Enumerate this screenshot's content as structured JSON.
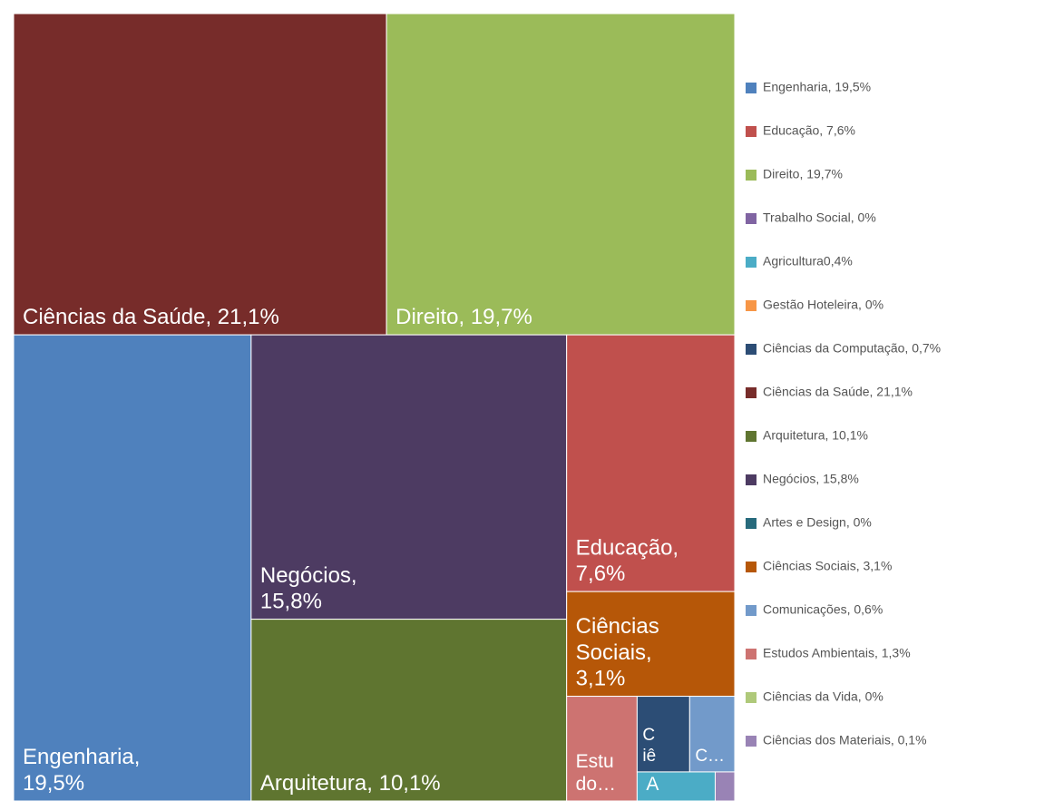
{
  "chart_data": {
    "type": "treemap",
    "categories": [
      "Engenharia",
      "Educação",
      "Direito",
      "Trabalho Social",
      "Agricultura",
      "Gestão Hoteleira",
      "Ciências da Computação",
      "Ciências da Saúde",
      "Arquitetura",
      "Negócios",
      "Artes e Design",
      "Ciências Sociais",
      "Comunicações",
      "Estudos Ambientais",
      "Ciências da Vida",
      "Ciências dos Materiais"
    ],
    "values": [
      19.5,
      7.6,
      19.7,
      0,
      0.4,
      0,
      0.7,
      21.1,
      10.1,
      15.8,
      0,
      3.1,
      0.6,
      1.3,
      0,
      0.1
    ],
    "colors": [
      "#4f81bd",
      "#c0504d",
      "#9bbb59",
      "#8064a2",
      "#4bacc6",
      "#f79646",
      "#2c4d75",
      "#772c2a",
      "#5f7530",
      "#4d3b62",
      "#276a7c",
      "#b65708",
      "#729aca",
      "#cd7371",
      "#afc97a",
      "#9983b5"
    ],
    "legend_labels": [
      "Engenharia, 19,5%",
      "Educação, 7,6%",
      "Direito, 19,7%",
      "Trabalho Social, 0%",
      "Agricultura0,4%",
      "Gestão Hoteleira, 0%",
      "Ciências da Computação, 0,7%",
      "Ciências da Saúde, 21,1%",
      "Arquitetura, 10,1%",
      "Negócios, 15,8%",
      "Artes e Design, 0%",
      "Ciências Sociais, 3,1%",
      "Comunicações, 0,6%",
      "Estudos Ambientais, 1,3%",
      "Ciências da Vida, 0%",
      "Ciências dos Materiais, 0,1%"
    ],
    "tile_labels": [
      [
        "Engenharia,",
        "19,5%"
      ],
      [
        "Educação,",
        "7,6%"
      ],
      [
        "Direito, 19,7%"
      ],
      null,
      [
        "A"
      ],
      null,
      [
        "C",
        "iê"
      ],
      [
        "Ciências da Saúde, 21,1%"
      ],
      [
        "Arquitetura, 10,1%"
      ],
      [
        "Negócios,",
        "15,8%"
      ],
      null,
      [
        "Ciências",
        "Sociais,",
        "3,1%"
      ],
      [
        "C…"
      ],
      [
        "Estu",
        "do…"
      ],
      null,
      null
    ],
    "legend": "right"
  }
}
